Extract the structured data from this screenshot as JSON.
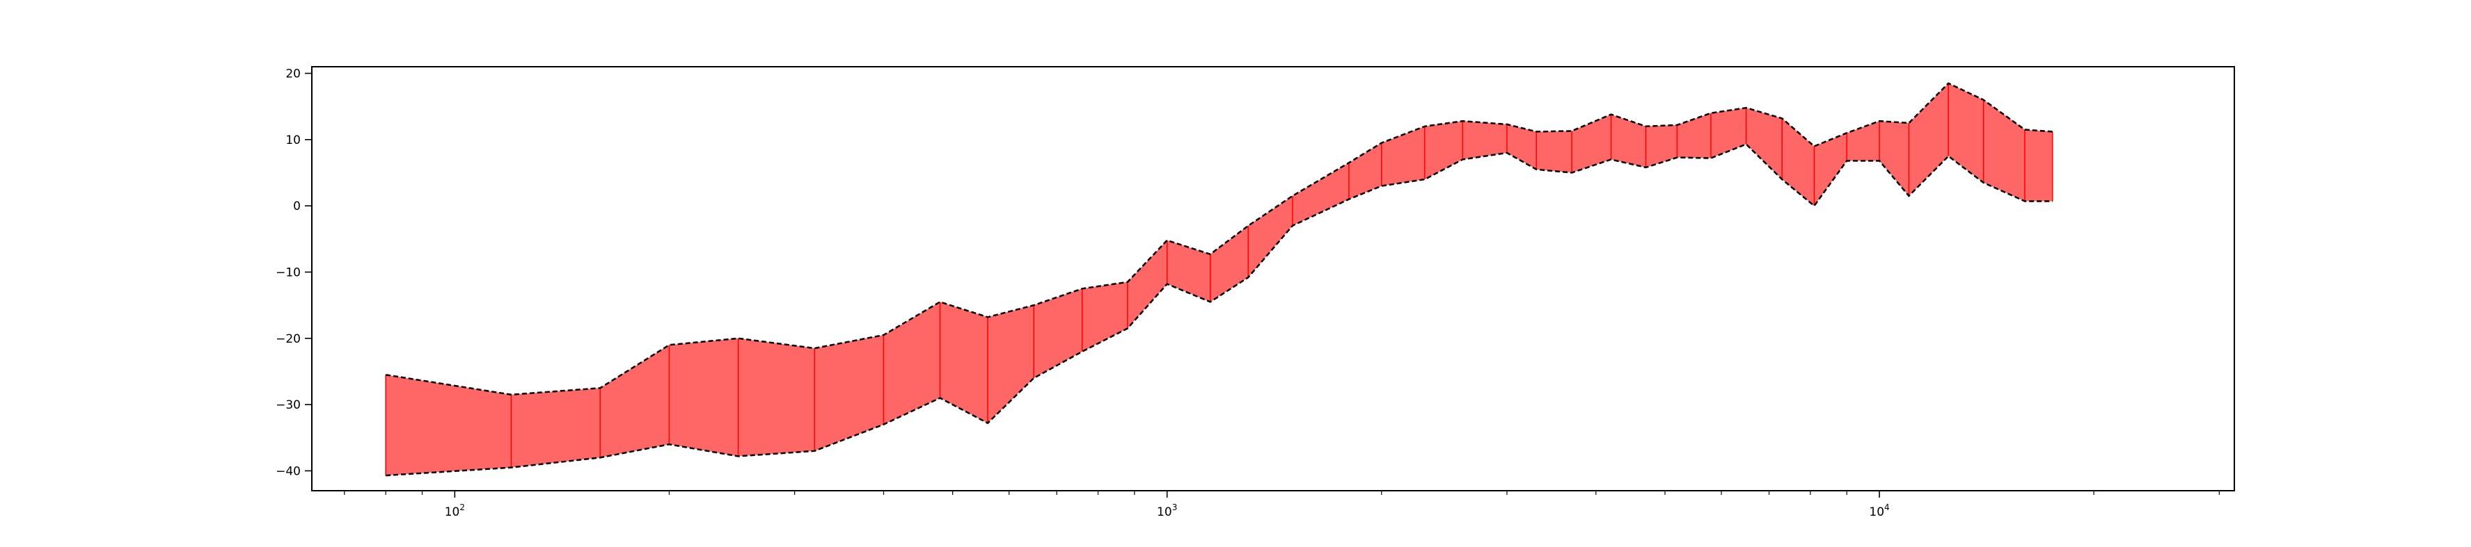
{
  "chart_data": {
    "type": "area",
    "title": "",
    "xlabel": "",
    "ylabel": "",
    "xscale": "log",
    "xlim": [
      63,
      31500
    ],
    "ylim": [
      -43,
      21
    ],
    "grid": false,
    "legend": "none",
    "x_tick_labels": [
      {
        "value": 100,
        "base": "10",
        "exp": "2"
      },
      {
        "value": 1000,
        "base": "10",
        "exp": "3"
      },
      {
        "value": 10000,
        "base": "10",
        "exp": "4"
      }
    ],
    "y_ticks": [
      -40,
      -30,
      -20,
      -10,
      0,
      10,
      20
    ],
    "y_tick_labels": [
      "−40",
      "−30",
      "−20",
      "−10",
      "0",
      "10",
      "20"
    ],
    "fill_color": "#ff6666",
    "edge_color": "#ff0000",
    "boundary_color": "#000000",
    "x": [
      80,
      120,
      160,
      200,
      250,
      320,
      400,
      480,
      560,
      650,
      760,
      880,
      1000,
      1150,
      1300,
      1500,
      1800,
      2000,
      2300,
      2600,
      3000,
      3300,
      3700,
      4200,
      4700,
      5200,
      5800,
      6500,
      7300,
      8100,
      9000,
      10000,
      11000,
      12500,
      14000,
      16000,
      17500
    ],
    "upper": [
      -25.5,
      -28.5,
      -27.5,
      -21.0,
      -20.0,
      -21.5,
      -19.5,
      -14.5,
      -16.8,
      -15.0,
      -12.5,
      -11.5,
      -5.2,
      -7.3,
      -3.0,
      1.5,
      6.5,
      9.5,
      12.0,
      12.8,
      12.3,
      11.2,
      11.3,
      13.8,
      12.0,
      12.2,
      14.0,
      14.8,
      13.2,
      9.0,
      11.0,
      12.8,
      12.5,
      18.5,
      16.0,
      11.5,
      11.2
    ],
    "lower": [
      -40.7,
      -39.5,
      -38.0,
      -36.0,
      -37.8,
      -37.0,
      -33.0,
      -29.0,
      -32.8,
      -26.0,
      -22.0,
      -18.5,
      -11.8,
      -14.5,
      -10.8,
      -3.0,
      1.0,
      3.0,
      4.0,
      7.0,
      8.0,
      5.5,
      5.0,
      7.0,
      5.8,
      7.3,
      7.2,
      9.3,
      4.0,
      0.0,
      6.8,
      6.8,
      1.5,
      7.5,
      3.5,
      0.7,
      0.7
    ]
  }
}
